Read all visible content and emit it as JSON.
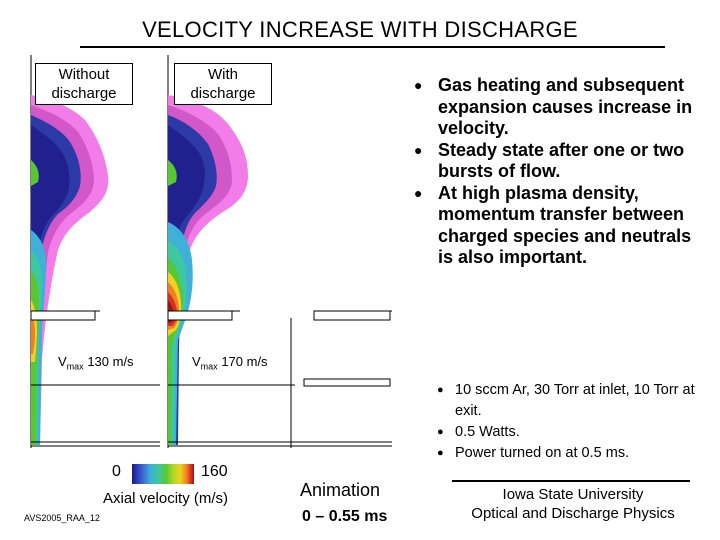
{
  "title": "VELOCITY INCREASE WITH DISCHARGE",
  "panels": {
    "without_label_line1": "Without",
    "without_label_line2": "discharge",
    "with_label_line1": "With",
    "with_label_line2": "discharge",
    "vmax_symbol": "V",
    "vmax_sub": "max",
    "vmax_without": "130 m/s",
    "vmax_with": "170 m/s"
  },
  "main_bullets": [
    "Gas heating and subsequent expansion causes increase in velocity.",
    "Steady state after one or two bursts of flow.",
    "At high plasma density, momentum transfer between charged species and neutrals is also important."
  ],
  "conditions": [
    "10 sccm Ar, 30 Torr at inlet, 10 Torr at exit.",
    "0.5 Watts.",
    "Power turned on at 0.5 ms."
  ],
  "color_scale": {
    "min": "0",
    "max": "160",
    "label": "Axial velocity (m/s)",
    "colors": [
      "#1a1a8c",
      "#3a5ad0",
      "#3fb0d8",
      "#3cc8a0",
      "#58c832",
      "#b8d820",
      "#f0d020",
      "#f08020",
      "#d83020",
      "#9a1414"
    ]
  },
  "footer_id": "AVS2005_RAA_12",
  "animation": {
    "title": "Animation",
    "range": "0 – 0.55 ms"
  },
  "institution": {
    "name": "Iowa State University",
    "department": "Optical and Discharge Physics"
  }
}
